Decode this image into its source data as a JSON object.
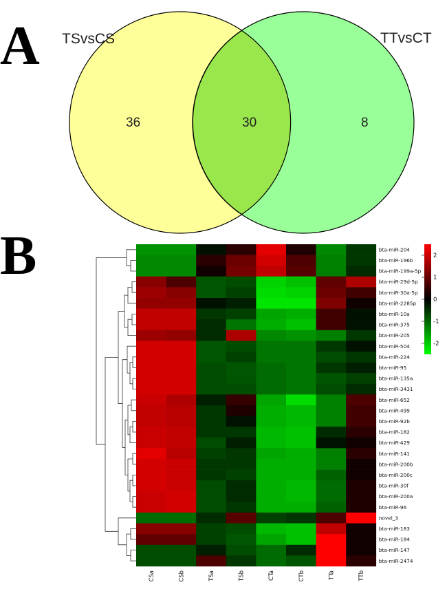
{
  "panels": {
    "a_letter": "A",
    "b_letter": "B"
  },
  "chart_data": [
    {
      "type": "venn",
      "sets": [
        "TSvsCS",
        "TTvsCT"
      ],
      "only_left": "36",
      "overlap": "30",
      "only_right": "8",
      "colors": {
        "left": "#ffff99",
        "right": "#99ff99",
        "overlap": "#99e64d"
      }
    },
    {
      "type": "heatmap",
      "columns": [
        "CSa",
        "CSb",
        "TSa",
        "TSb",
        "CTa",
        "CTb",
        "TTa",
        "TTb"
      ],
      "rows": [
        "bta-miR-204",
        "bta-miR-196b",
        "bta-miR-199a-5p",
        "bta-miR-29d-5p",
        "bta-miR-30a-5p",
        "bta-miR-2285p",
        "bta-miR-10a",
        "bta-miR-375",
        "bta-miR-205",
        "bta-miR-504",
        "bta-miR-224",
        "bta-miR-95",
        "bta-miR-135a",
        "bta-miR-3431",
        "bta-miR-652",
        "bta-miR-499",
        "bta-miR-92b",
        "bta-miR-182",
        "bta-miR-429",
        "bta-miR-141",
        "bta-miR-200b",
        "bta-miR-200c",
        "bta-miR-30f",
        "bta-miR-200a",
        "bta-miR-96",
        "novel_3",
        "bta-miR-183",
        "bta-miR-184",
        "bta-miR-147",
        "bta-miR-2474"
      ],
      "values": [
        [
          -1.3,
          -1.3,
          -0.1,
          0.3,
          2.2,
          0.2,
          -1.2,
          -0.4
        ],
        [
          -1.2,
          -1.2,
          0.3,
          0.9,
          2.0,
          0.6,
          -1.1,
          -0.4
        ],
        [
          -1.2,
          -1.2,
          0.1,
          1.0,
          1.8,
          0.7,
          -1.1,
          -0.3
        ],
        [
          1.2,
          0.6,
          -0.7,
          -0.6,
          -2.0,
          -1.8,
          0.8,
          1.6
        ],
        [
          1.4,
          1.2,
          -0.7,
          -0.5,
          -2.1,
          -2.0,
          0.9,
          0.5
        ],
        [
          1.3,
          1.3,
          -0.1,
          -0.2,
          -2.2,
          -2.2,
          1.1,
          0.1
        ],
        [
          1.8,
          1.8,
          -0.4,
          -0.5,
          -1.5,
          -1.6,
          0.5,
          -0.1
        ],
        [
          1.8,
          1.8,
          -0.3,
          -1.0,
          -1.6,
          -1.8,
          0.5,
          -0.1
        ],
        [
          1.4,
          1.3,
          -0.3,
          1.6,
          -1.2,
          -1.3,
          -1.1,
          -0.4
        ],
        [
          2.0,
          2.0,
          -0.7,
          -0.6,
          -1.0,
          -1.0,
          -0.4,
          -0.1
        ],
        [
          2.0,
          2.0,
          -0.7,
          -0.5,
          -1.0,
          -1.0,
          -0.6,
          -0.4
        ],
        [
          2.0,
          2.0,
          -0.6,
          -0.7,
          -0.9,
          -1.0,
          -0.4,
          -0.2
        ],
        [
          2.0,
          2.0,
          -0.6,
          -0.7,
          -0.9,
          -1.0,
          -0.7,
          -0.5
        ],
        [
          2.0,
          2.0,
          -0.6,
          -0.6,
          -0.9,
          -1.0,
          -0.6,
          -0.3
        ],
        [
          1.9,
          1.6,
          -0.2,
          0.4,
          -1.5,
          -2.1,
          -1.1,
          0.6
        ],
        [
          1.8,
          1.7,
          -0.4,
          0.2,
          -1.6,
          -1.7,
          -1.1,
          0.5
        ],
        [
          1.8,
          1.7,
          -0.4,
          -0.1,
          -1.6,
          -1.7,
          -1.1,
          0.5
        ],
        [
          1.9,
          1.8,
          -0.4,
          -0.4,
          -1.7,
          -1.8,
          -0.3,
          0.3
        ],
        [
          1.9,
          1.8,
          -0.6,
          -0.2,
          -1.7,
          -1.8,
          -0.1,
          0.1
        ],
        [
          2.2,
          1.7,
          -0.5,
          -0.4,
          -1.5,
          -1.6,
          -1.1,
          0.3
        ],
        [
          2.0,
          1.9,
          -0.4,
          -0.4,
          -1.6,
          -1.6,
          -1.1,
          0.1
        ],
        [
          2.0,
          1.9,
          -0.4,
          -0.5,
          -1.6,
          -1.6,
          -0.8,
          0.1
        ],
        [
          2.0,
          1.9,
          -0.6,
          -0.3,
          -1.6,
          -1.7,
          -0.9,
          0.2
        ],
        [
          1.9,
          2.0,
          -0.6,
          -0.3,
          -1.6,
          -1.7,
          -0.9,
          0.2
        ],
        [
          1.9,
          2.0,
          -0.6,
          -0.4,
          -1.6,
          -1.6,
          -0.8,
          0.2
        ],
        [
          -0.9,
          -0.9,
          -0.3,
          0.7,
          -0.5,
          -0.4,
          0.6,
          2.6
        ],
        [
          1.2,
          1.2,
          -0.5,
          -0.6,
          -1.7,
          -1.8,
          1.8,
          0.1
        ],
        [
          0.8,
          0.8,
          -0.5,
          -0.7,
          -1.5,
          -1.8,
          2.7,
          0.1
        ],
        [
          -0.6,
          -0.6,
          -0.2,
          -0.6,
          -0.9,
          -0.3,
          2.9,
          0.1
        ],
        [
          -0.6,
          -0.6,
          0.6,
          -0.4,
          -0.9,
          -0.7,
          2.9,
          0.3
        ]
      ],
      "color_scale": {
        "min": -2.5,
        "max": 2.5,
        "low": "#00ff00",
        "mid": "#000000",
        "high": "#ff0000"
      },
      "legend_ticks": [
        "2",
        "1",
        "0",
        "-1",
        "-2"
      ],
      "legend_placement": "top-right",
      "dendrogram": "rows"
    }
  ]
}
